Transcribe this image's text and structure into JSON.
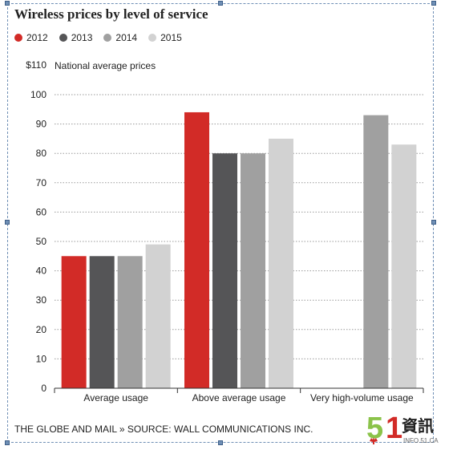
{
  "chart_data": {
    "type": "bar",
    "title": "Wireless prices by level of service",
    "ylabel": "National average prices",
    "ylim": [
      0,
      110
    ],
    "yticks": [
      0,
      10,
      20,
      30,
      40,
      50,
      60,
      70,
      80,
      90,
      100,
      110
    ],
    "ytick_labels": [
      "0",
      "10",
      "20",
      "30",
      "40",
      "50",
      "60",
      "70",
      "80",
      "90",
      "100",
      "$110"
    ],
    "grid": true,
    "legend_placement": "top-left",
    "categories": [
      "Average usage",
      "Above average usage",
      "Very high-volume usage"
    ],
    "series": [
      {
        "name": "2012",
        "color": "#d22b27",
        "values": [
          45,
          94,
          null
        ]
      },
      {
        "name": "2013",
        "color": "#555557",
        "values": [
          45,
          80,
          null
        ]
      },
      {
        "name": "2014",
        "color": "#a0a0a0",
        "values": [
          45,
          80,
          93
        ]
      },
      {
        "name": "2015",
        "color": "#d2d2d2",
        "values": [
          49,
          85,
          83
        ]
      }
    ]
  },
  "footer": {
    "source": "THE GLOBE AND MAIL » SOURCE: WALL COMMUNICATIONS INC."
  },
  "watermark": {
    "digit_5": "5",
    "digit_1": "1",
    "chinese": "資訊",
    "site": "INFO.51.CA",
    "colors": {
      "green": "#8bc34a",
      "red": "#d22b27"
    }
  }
}
